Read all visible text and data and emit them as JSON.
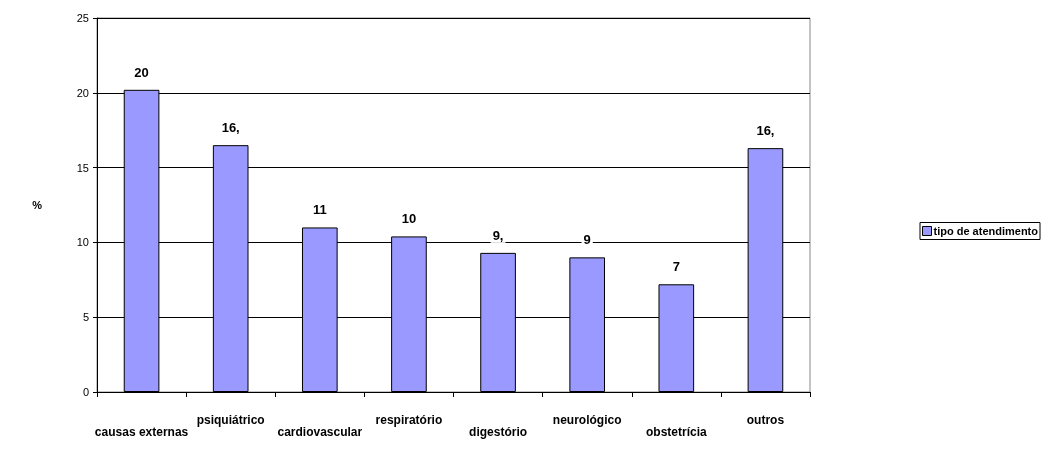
{
  "chart_data": {
    "type": "bar",
    "ylabel": "%",
    "categories": [
      "causas externas",
      "psiquiátrico",
      "cardiovascular",
      "respiratório",
      "digestório",
      "neurológico",
      "obstetrícia",
      "outros"
    ],
    "series": [
      {
        "name": "tipo de atendimento",
        "color": "#9999ff",
        "values": [
          20.2,
          16.5,
          11.0,
          10.4,
          9.3,
          9.0,
          7.2,
          16.3
        ],
        "value_labels": [
          "20",
          "16,",
          "11",
          "10",
          "9,",
          "9",
          "7",
          "16,"
        ]
      }
    ],
    "ylim": [
      0,
      25
    ],
    "yticks": [
      0,
      5,
      10,
      15,
      20,
      25
    ],
    "grid": "y",
    "legend": "right"
  }
}
